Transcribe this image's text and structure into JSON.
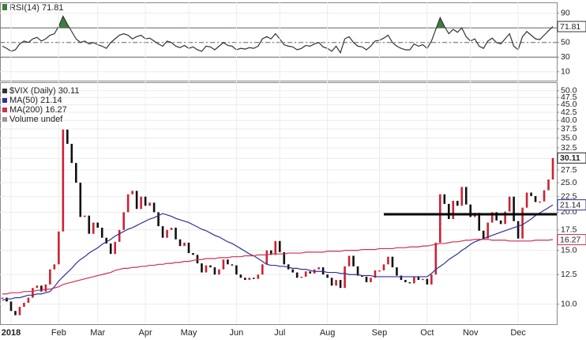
{
  "chart_data": [
    {
      "type": "line",
      "title": "RSI(14) 71.81",
      "ylim": [
        0,
        100
      ],
      "yticks": [
        10,
        30,
        50,
        70,
        90
      ],
      "grid": true,
      "hlines": [
        {
          "value": 70
        },
        {
          "value": 50,
          "dash": true
        },
        {
          "value": 30
        }
      ],
      "fill_above": {
        "value": 70,
        "color": "#3d7d3d"
      },
      "series": [
        {
          "name": "RSI(14)",
          "color": "#333333",
          "style": "line",
          "values": [
            45,
            42,
            38,
            40,
            48,
            52,
            50,
            55,
            57,
            52,
            55,
            60,
            62,
            72,
            86,
            75,
            65,
            55,
            50,
            52,
            48,
            50,
            47,
            45,
            42,
            50,
            55,
            60,
            62,
            60,
            55,
            58,
            60,
            55,
            56,
            52,
            48,
            45,
            52,
            50,
            45,
            43,
            46,
            42,
            44,
            40,
            38,
            45,
            44,
            40,
            45,
            50,
            46,
            45,
            40,
            42,
            41,
            43,
            42,
            45,
            55,
            58,
            55,
            62,
            55,
            47,
            45,
            44,
            40,
            42,
            46,
            45,
            48,
            50,
            44,
            42,
            38,
            45,
            36,
            55,
            58,
            50,
            45,
            44,
            40,
            45,
            52,
            53,
            56,
            60,
            50,
            45,
            42,
            40,
            40,
            48,
            45,
            47,
            42,
            52,
            68,
            84,
            72,
            62,
            68,
            64,
            70,
            58,
            52,
            55,
            45,
            42,
            52,
            56,
            50,
            48,
            55,
            62,
            45,
            40,
            58,
            65,
            60,
            55,
            54,
            60,
            66,
            71.81
          ]
        }
      ]
    },
    {
      "type": "line",
      "log_scale": true,
      "grid": true,
      "ylim": [
        8.7,
        53
      ],
      "yticks": [
        {
          "value": 10,
          "label": "10.0"
        },
        {
          "value": 12.5,
          "label": "12.5"
        },
        {
          "value": 15,
          "label": "15.0"
        },
        {
          "value": 17.5,
          "label": "17.5"
        },
        {
          "value": 20,
          "label": "20.0"
        },
        {
          "value": 22.5,
          "label": "22.5"
        },
        {
          "value": 25,
          "label": "25.0"
        },
        {
          "value": 27.5,
          "label": "27.5"
        },
        {
          "value": 30,
          "label": "30.0"
        },
        {
          "value": 32.5,
          "label": "32.5"
        },
        {
          "value": 35,
          "label": "35.0"
        },
        {
          "value": 37.5,
          "label": "37.5"
        },
        {
          "value": 40,
          "label": "40.0"
        },
        {
          "value": 42.5,
          "label": "42.5"
        },
        {
          "value": 45,
          "label": "45.0"
        },
        {
          "value": 47.5,
          "label": "47.5"
        },
        {
          "value": 50,
          "label": "50.0"
        }
      ],
      "legend_extra": "Volume undef",
      "annotations": [
        {
          "value": 19.7,
          "start": 88
        }
      ],
      "categories": [
        null,
        null,
        "2018",
        null,
        null,
        null,
        null,
        null,
        null,
        null,
        null,
        null,
        null,
        "Feb",
        null,
        null,
        null,
        null,
        null,
        null,
        null,
        null,
        "Mar",
        null,
        null,
        null,
        null,
        null,
        null,
        null,
        null,
        null,
        null,
        "Apr",
        null,
        null,
        null,
        null,
        null,
        null,
        null,
        null,
        null,
        "May",
        null,
        null,
        null,
        null,
        null,
        null,
        null,
        null,
        null,
        null,
        "Jun",
        null,
        null,
        null,
        null,
        null,
        null,
        null,
        null,
        null,
        "Jul",
        null,
        null,
        null,
        null,
        null,
        null,
        null,
        null,
        null,
        null,
        "Aug",
        null,
        null,
        null,
        null,
        null,
        null,
        null,
        null,
        null,
        null,
        null,
        "Sep",
        null,
        null,
        null,
        null,
        null,
        null,
        null,
        null,
        null,
        null,
        "Oct",
        null,
        null,
        null,
        null,
        null,
        null,
        null,
        null,
        null,
        "Nov",
        null,
        null,
        null,
        null,
        null,
        null,
        null,
        null,
        null,
        null,
        "Dec",
        null,
        null,
        null,
        null,
        null,
        null,
        null,
        null
      ],
      "series": [
        {
          "name": "$VIX (Daily) 30.11",
          "color": "#cc2233",
          "down_color": "#111111",
          "style": "bars",
          "values": [
            10.5,
            10.2,
            9.5,
            9.2,
            9.8,
            10.1,
            10.5,
            11.3,
            11.5,
            11.0,
            11.6,
            13.0,
            13.5,
            17.3,
            37.3,
            33.5,
            29,
            25,
            19.3,
            19.5,
            17,
            18.5,
            17.8,
            16.5,
            15.8,
            14.6,
            16.0,
            17.5,
            20,
            22.9,
            23.5,
            20.5,
            22.5,
            21,
            21.5,
            20,
            18,
            16.5,
            17.5,
            17.8,
            16.3,
            15.5,
            15.9,
            14.7,
            14.5,
            13.6,
            12.7,
            13.4,
            13.2,
            12.5,
            13.0,
            14.0,
            13.5,
            13.4,
            12.5,
            12.2,
            12.0,
            12.2,
            12.1,
            12.5,
            13.5,
            15,
            14.5,
            16.1,
            14.8,
            13.5,
            13.0,
            12.7,
            12.2,
            12.3,
            12.8,
            12.6,
            13.0,
            13.2,
            12.5,
            12.2,
            11.5,
            12.0,
            11.3,
            13.3,
            14.4,
            13.3,
            12.4,
            12.3,
            11.8,
            12.2,
            12.9,
            12.9,
            13.5,
            14.3,
            13.2,
            12.4,
            12.0,
            11.8,
            11.7,
            12.3,
            12.0,
            12.1,
            11.6,
            12.5,
            15.9,
            22.9,
            21.3,
            19,
            21.8,
            21,
            24.2,
            21.2,
            19.3,
            19.9,
            17.4,
            16.4,
            18.5,
            20.0,
            18.8,
            18.3,
            20.1,
            22.5,
            18.7,
            16.4,
            20.7,
            23.2,
            22.6,
            21.6,
            21.7,
            23.6,
            25.6,
            30.11
          ]
        },
        {
          "name": "MA(50) 21.14",
          "color": "#30309a",
          "style": "line",
          "values": [
            10.3,
            10.4,
            10.4,
            10.5,
            10.5,
            10.6,
            10.7,
            10.7,
            10.8,
            10.8,
            10.9,
            11.0,
            11.4,
            11.9,
            12.3,
            12.7,
            13.1,
            13.6,
            14.0,
            14.3,
            14.7,
            15.0,
            15.3,
            15.7,
            16.0,
            16.3,
            16.7,
            17.0,
            17.3,
            17.6,
            17.8,
            18.1,
            18.4,
            18.7,
            19.0,
            19.2,
            19.5,
            19.8,
            19.6,
            19.4,
            19.1,
            18.9,
            18.7,
            18.5,
            18.2,
            17.9,
            17.6,
            17.4,
            17.1,
            16.8,
            16.6,
            16.3,
            16.0,
            15.8,
            15.5,
            15.2,
            14.9,
            14.6,
            14.4,
            14.1,
            13.8,
            13.5,
            13.4,
            13.4,
            13.3,
            13.3,
            13.2,
            13.1,
            13.1,
            13.0,
            13.0,
            12.9,
            12.8,
            12.8,
            12.8,
            12.7,
            12.7,
            12.7,
            12.6,
            12.6,
            12.5,
            12.5,
            12.5,
            12.4,
            12.4,
            12.4,
            12.3,
            12.3,
            12.3,
            12.3,
            12.3,
            12.3,
            12.3,
            12.3,
            12.3,
            12.3,
            12.3,
            12.3,
            12.3,
            12.6,
            13.0,
            13.3,
            13.6,
            14.0,
            14.3,
            14.6,
            15.0,
            15.3,
            15.7,
            16.0,
            16.2,
            16.4,
            16.6,
            16.8,
            17.0,
            17.2,
            17.4,
            17.6,
            17.8,
            18.0,
            18.2,
            18.6,
            19.0,
            19.5,
            19.9,
            20.3,
            20.7,
            21.14
          ]
        },
        {
          "name": "MA(200) 16.27",
          "color": "#d03050",
          "style": "line",
          "values": [
            10.8,
            10.8,
            10.9,
            10.9,
            10.9,
            11.0,
            11.0,
            11.0,
            11.1,
            11.1,
            11.2,
            11.2,
            11.3,
            11.4,
            11.6,
            11.7,
            11.8,
            11.9,
            12.0,
            12.1,
            12.2,
            12.3,
            12.4,
            12.5,
            12.6,
            12.7,
            12.9,
            13.0,
            13.1,
            13.1,
            13.2,
            13.2,
            13.3,
            13.3,
            13.4,
            13.4,
            13.5,
            13.5,
            13.6,
            13.6,
            13.7,
            13.7,
            13.8,
            13.8,
            13.9,
            14.0,
            14.0,
            14.1,
            14.1,
            14.1,
            14.2,
            14.2,
            14.2,
            14.3,
            14.3,
            14.3,
            14.4,
            14.4,
            14.4,
            14.5,
            14.5,
            14.5,
            14.6,
            14.6,
            14.6,
            14.6,
            14.7,
            14.7,
            14.7,
            14.7,
            14.8,
            14.8,
            14.8,
            14.8,
            14.8,
            14.9,
            14.9,
            14.9,
            14.9,
            15.0,
            15.0,
            15.0,
            15.0,
            15.1,
            15.1,
            15.1,
            15.1,
            15.2,
            15.2,
            15.2,
            15.2,
            15.3,
            15.3,
            15.3,
            15.4,
            15.4,
            15.4,
            15.5,
            15.5,
            15.6,
            15.7,
            15.8,
            15.8,
            15.9,
            16.0,
            16.0,
            16.1,
            16.2,
            16.2,
            16.3,
            16.3,
            16.3,
            16.3,
            16.2,
            16.2,
            16.2,
            16.2,
            16.1,
            16.1,
            16.1,
            16.1,
            16.1,
            16.1,
            16.2,
            16.2,
            16.2,
            16.2,
            16.27
          ]
        }
      ]
    }
  ]
}
